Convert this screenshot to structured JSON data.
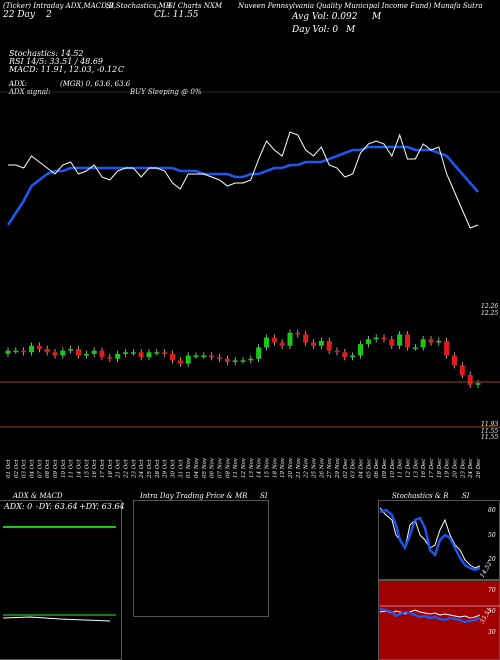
{
  "header": {
    "line1": "(Ticker) Intraday ADX,MACD,B",
    "line1b": "SI,Stochastics,MR",
    "line1c": "SI Charts NXM",
    "line1d": "Nuveen Pennsylvania Quality Municipal Income Fund) Munafa Sutra",
    "date": "22 Day",
    "date_suffix": "2",
    "close_label": "CL: 11.55",
    "avg_vol": "Avg Vol: 0.092",
    "avg_vol_unit": "M",
    "day_vol": "Day Vol: 0",
    "day_vol_unit": "M"
  },
  "indicators": {
    "stochastics": "Stochastics: 14.52",
    "rsi": "RSI 14/5: 33.51 / 48.69",
    "macd": "MACD: 11.91, 12.03, -0.12",
    "macd_suffix": "C",
    "adx": "ADX:",
    "adx_values": "(MGR) 0, 63.6, 63.6",
    "adx_signal": "ADX signal:",
    "buy_selling": "BUY Sleeping @ 0%"
  },
  "price_labels": {
    "upper_top": "12.26",
    "upper_bot": "12.25",
    "lower_1": "11.93",
    "lower_2": "11.55",
    "lower_3": "11.55"
  },
  "panel_titles": {
    "adx_macd": "ADX  & MACD",
    "intra": "Intra Day Trading Price  & MR",
    "intra_suffix": "SI",
    "stoch": "Stochastics & R",
    "stoch_suffix": "SI"
  },
  "adx_box": {
    "adx": "ADX: 0",
    "dy_neg": "-DY: 63.64",
    "dy_pos": "+DY: 63.64"
  },
  "stoch_labels": {
    "s80": "80",
    "s50": "50",
    "s20": "20",
    "val": "14.52",
    "r70": "70",
    "r50": "50",
    "r30": "30",
    "rval": "33.51"
  },
  "colors": {
    "background": "#000000",
    "price_line": "#ffffff",
    "ma_line": "#1c58f0",
    "up_candle": "#19c919",
    "down_candle": "#e11b1b",
    "level_line": "#8a4a16",
    "rsi_bg": "#a00000"
  },
  "chart_data": [
    {
      "type": "line",
      "title": "Price vs moving average",
      "x": [
        "01 Oct",
        "02 Oct",
        "03 Oct",
        "04 Oct",
        "07 Oct",
        "08 Oct",
        "09 Oct",
        "10 Oct",
        "11 Oct",
        "14 Oct",
        "15 Oct",
        "16 Oct",
        "17 Oct",
        "18 Oct",
        "21 Oct",
        "22 Oct",
        "23 Oct",
        "24 Oct",
        "25 Oct",
        "28 Oct",
        "29 Oct",
        "30 Oct",
        "31 Oct",
        "01 Nov",
        "04 Nov",
        "05 Nov",
        "06 Nov",
        "07 Nov",
        "08 Nov",
        "11 Nov",
        "12 Nov",
        "13 Nov",
        "14 Nov",
        "15 Nov",
        "18 Nov",
        "19 Nov",
        "20 Nov",
        "21 Nov",
        "22 Nov",
        "25 Nov",
        "26 Nov",
        "27 Nov",
        "29 Nov",
        "02 Dec",
        "03 Dec",
        "04 Dec",
        "05 Dec",
        "06 Dec",
        "09 Dec",
        "10 Dec",
        "11 Dec",
        "12 Dec",
        "13 Dec",
        "16 Dec",
        "17 Dec",
        "18 Dec",
        "19 Dec",
        "20 Dec",
        "23 Dec",
        "24 Dec",
        "26 Dec"
      ],
      "series": [
        {
          "values": [
            12.05,
            12.05,
            12.04,
            12.08,
            12.06,
            12.04,
            12.02,
            12.05,
            12.06,
            12.02,
            12.03,
            12.05,
            12.01,
            12.0,
            12.03,
            12.04,
            12.04,
            12.01,
            12.04,
            12.04,
            12.03,
            11.99,
            11.97,
            12.02,
            12.02,
            12.02,
            12.01,
            12.0,
            11.98,
            11.99,
            11.99,
            12.0,
            12.07,
            12.13,
            12.1,
            12.08,
            12.16,
            12.15,
            12.1,
            12.08,
            12.11,
            12.05,
            12.04,
            12.01,
            12.02,
            12.09,
            12.12,
            12.13,
            12.12,
            12.08,
            12.15,
            12.07,
            12.07,
            12.12,
            12.1,
            12.11,
            12.02,
            11.96,
            11.9,
            11.84,
            11.85
          ]
        },
        {
          "values": [
            11.85,
            11.89,
            11.93,
            11.98,
            12.0,
            12.02,
            12.03,
            12.03,
            12.04,
            12.04,
            12.04,
            12.04,
            12.04,
            12.04,
            12.04,
            12.04,
            12.04,
            12.04,
            12.04,
            12.04,
            12.04,
            12.04,
            12.03,
            12.03,
            12.03,
            12.02,
            12.02,
            12.02,
            12.02,
            12.01,
            12.01,
            12.02,
            12.02,
            12.03,
            12.04,
            12.04,
            12.05,
            12.05,
            12.06,
            12.06,
            12.06,
            12.07,
            12.08,
            12.09,
            12.1,
            12.1,
            12.11,
            12.11,
            12.11,
            12.11,
            12.11,
            12.11,
            12.1,
            12.1,
            12.1,
            12.09,
            12.08,
            12.05,
            12.02,
            11.99,
            11.96
          ]
        }
      ]
    }
  ]
}
